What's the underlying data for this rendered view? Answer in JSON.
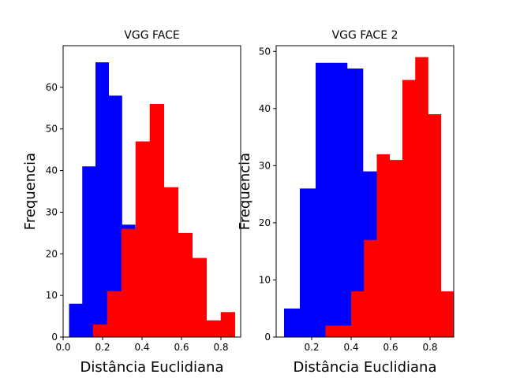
{
  "chart_data": [
    {
      "type": "histogram",
      "title": "VGG FACE",
      "xlabel": "Distância Euclidiana",
      "ylabel": "Frequencia",
      "xlim": [
        0.0,
        0.9
      ],
      "ylim": [
        0,
        70
      ],
      "xticks": [
        "0.0",
        "0.2",
        "0.4",
        "0.6",
        "0.8"
      ],
      "xtick_values": [
        0.0,
        0.2,
        0.4,
        0.6,
        0.8
      ],
      "yticks": [
        "0",
        "10",
        "20",
        "30",
        "40",
        "50",
        "60"
      ],
      "ytick_values": [
        0,
        10,
        20,
        30,
        40,
        50,
        60
      ],
      "grid": false,
      "series": [
        {
          "color": "#0000ff",
          "bin_edges": [
            0.03,
            0.097,
            0.164,
            0.231,
            0.298,
            0.365
          ],
          "counts": [
            8,
            41,
            66,
            58,
            27
          ]
        },
        {
          "color": "#ff0000",
          "bin_edges": [
            0.151,
            0.223,
            0.295,
            0.367,
            0.439,
            0.511,
            0.583,
            0.655,
            0.727,
            0.799,
            0.871
          ],
          "counts": [
            3,
            11,
            26,
            47,
            56,
            36,
            25,
            19,
            4,
            6
          ]
        }
      ]
    },
    {
      "type": "histogram",
      "title": "VGG FACE 2",
      "xlabel": "Distância Euclidiana",
      "ylabel": "Frequencia",
      "xlim": [
        0.02,
        0.92
      ],
      "ylim": [
        0,
        51
      ],
      "xticks": [
        "0.2",
        "0.4",
        "0.6",
        "0.8"
      ],
      "xtick_values": [
        0.2,
        0.4,
        0.6,
        0.8
      ],
      "yticks": [
        "0",
        "10",
        "20",
        "30",
        "40",
        "50"
      ],
      "ytick_values": [
        0,
        10,
        20,
        30,
        40,
        50
      ],
      "grid": false,
      "series": [
        {
          "color": "#0000ff",
          "bin_edges": [
            0.06,
            0.14,
            0.22,
            0.3,
            0.38,
            0.46,
            0.54
          ],
          "counts": [
            5,
            26,
            48,
            48,
            47,
            29
          ]
        },
        {
          "color": "#ff0000",
          "bin_edges": [
            0.27,
            0.335,
            0.4,
            0.465,
            0.53,
            0.595,
            0.66,
            0.725,
            0.79,
            0.855,
            0.92
          ],
          "counts": [
            2,
            2,
            8,
            17,
            32,
            31,
            45,
            49,
            39,
            8
          ]
        }
      ]
    }
  ]
}
